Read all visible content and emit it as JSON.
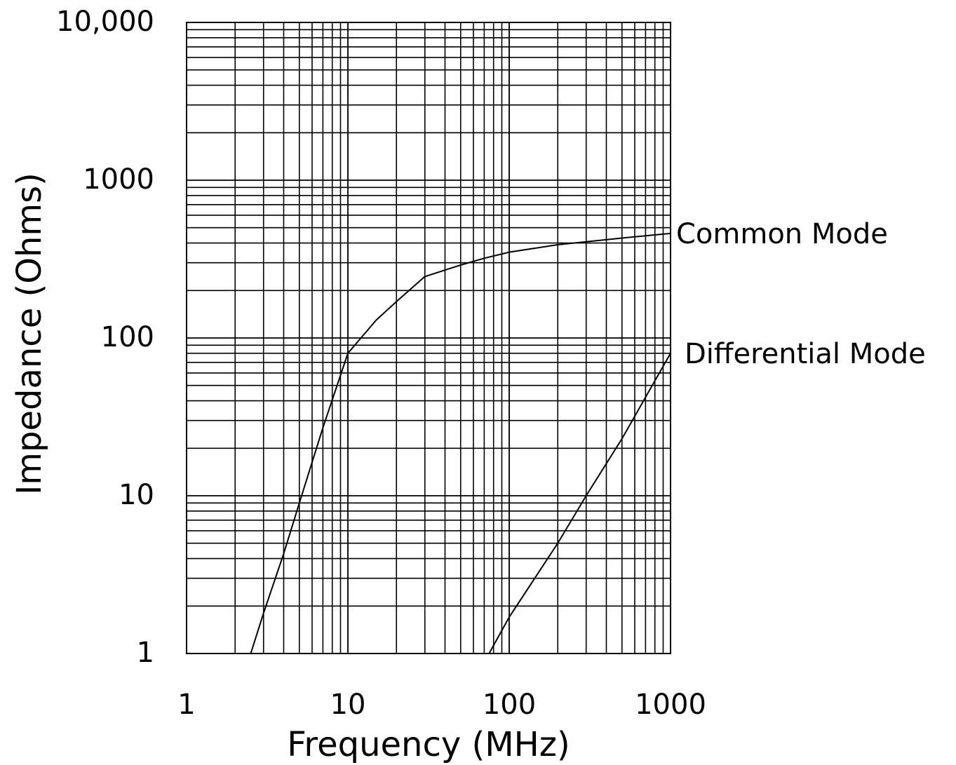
{
  "chart_data": {
    "type": "line",
    "xlabel": "Frequency (MHz)",
    "ylabel": "Impedance (Ohms)",
    "x_scale": "log",
    "y_scale": "log",
    "xlim": [
      1,
      1000
    ],
    "ylim": [
      1,
      10000
    ],
    "grid": true,
    "x_ticks": [
      {
        "value": 1,
        "label": "1"
      },
      {
        "value": 10,
        "label": "10"
      },
      {
        "value": 100,
        "label": "100"
      },
      {
        "value": 1000,
        "label": "1000"
      }
    ],
    "y_ticks": [
      {
        "value": 1,
        "label": "1"
      },
      {
        "value": 10,
        "label": "10"
      },
      {
        "value": 100,
        "label": "100"
      },
      {
        "value": 1000,
        "label": "1000"
      },
      {
        "value": 10000,
        "label": "10,000"
      }
    ],
    "series": [
      {
        "name": "Common Mode",
        "x": [
          2.5,
          3,
          4,
          5,
          7,
          10,
          15,
          20,
          30,
          50,
          70,
          100,
          200,
          500,
          1000
        ],
        "y": [
          1,
          1.8,
          4.3,
          9,
          27,
          80,
          130,
          170,
          245,
          290,
          320,
          350,
          390,
          430,
          460
        ]
      },
      {
        "name": "Differential Mode",
        "x": [
          75,
          100,
          200,
          300,
          500,
          1000
        ],
        "y": [
          1,
          1.7,
          5,
          10,
          23,
          80
        ]
      }
    ],
    "colors": {
      "line": "#000000",
      "grid": "#000000",
      "background": "#ffffff"
    }
  }
}
